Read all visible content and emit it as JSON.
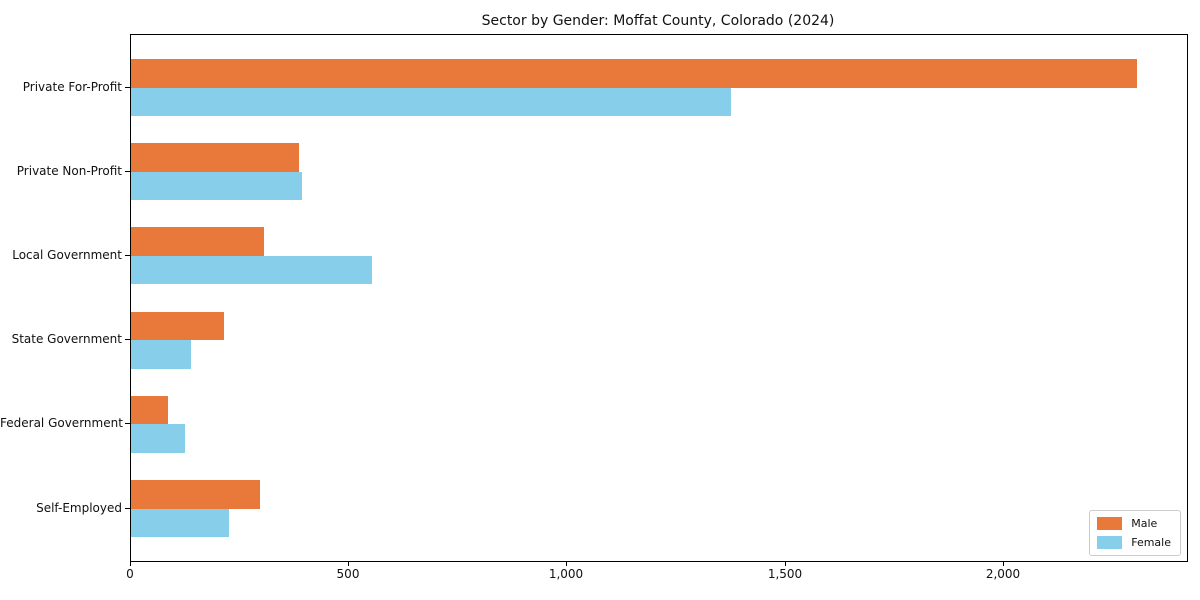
{
  "chart_data": {
    "type": "bar",
    "orientation": "horizontal",
    "title": "Sector by Gender: Moffat County, Colorado (2024)",
    "categories": [
      "Private For-Profit",
      "Private Non-Profit",
      "Local Government",
      "State Government",
      "Federal Government",
      "Self-Employed"
    ],
    "series": [
      {
        "name": "Male",
        "color": "#E8793B",
        "values": [
          2305,
          385,
          305,
          212,
          85,
          295
        ]
      },
      {
        "name": "Female",
        "color": "#87CEEB",
        "values": [
          1375,
          392,
          552,
          138,
          124,
          225
        ]
      }
    ],
    "xlabel": "",
    "ylabel": "",
    "xlim": [
      0,
      2420
    ],
    "x_ticks": [
      0,
      500,
      1000,
      1500,
      2000
    ],
    "x_tick_labels": [
      "0",
      "500",
      "1,000",
      "1,500",
      "2,000"
    ],
    "grid": false,
    "legend": {
      "position": "lower right",
      "entries": [
        "Male",
        "Female"
      ]
    }
  }
}
